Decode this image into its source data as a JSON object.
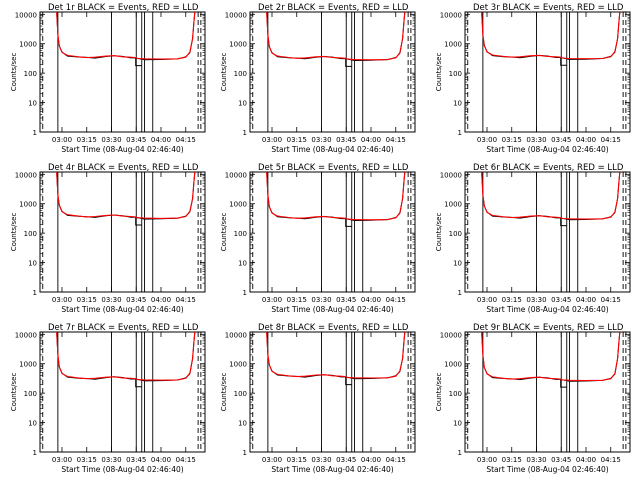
{
  "chart_data": {
    "type": "line",
    "layout": "3x3 grid of log-scale count-rate plots",
    "ylabel": "Counts/sec",
    "xlabel": "Start Time (08-Aug-04 02:46:40)",
    "x_tick_labels": [
      "03:00",
      "03:15",
      "03:30",
      "03:45",
      "04:00",
      "04:15"
    ],
    "x_ticks_sec_after_start": [
      800,
      1700,
      2600,
      3500,
      4400,
      5300
    ],
    "xlim_sec_after_start": [
      0,
      6000
    ],
    "y_scale": "log",
    "ylim": [
      1,
      12000
    ],
    "y_tick_labels": [
      "1",
      "10",
      "100",
      "1000",
      "10000"
    ],
    "y_tick_values": [
      1,
      10,
      100,
      1000,
      10000
    ],
    "series_colors": {
      "events": "#000000",
      "lld": "#ff0000"
    },
    "panels": [
      {
        "title": "Det 1r BLACK = Events, RED = LLD",
        "base": 360
      },
      {
        "title": "Det 2r BLACK = Events, RED = LLD",
        "base": 340
      },
      {
        "title": "Det 3r BLACK = Events, RED = LLD",
        "base": 370
      },
      {
        "title": "Det 4r BLACK = Events, RED = LLD",
        "base": 380
      },
      {
        "title": "Det 5r BLACK = Events, RED = LLD",
        "base": 340
      },
      {
        "title": "Det 6r BLACK = Events, RED = LLD",
        "base": 360
      },
      {
        "title": "Det 7r BLACK = Events, RED = LLD",
        "base": 330
      },
      {
        "title": "Det 8r BLACK = Events, RED = LLD",
        "base": 390
      },
      {
        "title": "Det 9r BLACK = Events, RED = LLD",
        "base": 320
      }
    ],
    "solid_markers_sec": [
      650,
      2600,
      3500,
      3700,
      3800,
      4100
    ],
    "dashed_markers_sec": [
      100,
      5750,
      5850
    ],
    "curve_shape_sec": [
      [
        600,
        15000
      ],
      [
        650,
        2000
      ],
      [
        700,
        800
      ],
      [
        800,
        480
      ],
      [
        1000,
        380
      ],
      [
        1400,
        340
      ],
      [
        1700,
        320
      ],
      [
        2000,
        330
      ],
      [
        2400,
        360
      ],
      [
        2700,
        370
      ],
      [
        3000,
        340
      ],
      [
        3300,
        330
      ],
      [
        3480,
        320
      ],
      [
        3520,
        300
      ],
      [
        3800,
        290
      ],
      [
        4400,
        285
      ],
      [
        5000,
        290
      ],
      [
        5300,
        330
      ],
      [
        5450,
        500
      ],
      [
        5550,
        1500
      ],
      [
        5600,
        6000
      ],
      [
        5650,
        20000
      ]
    ]
  }
}
